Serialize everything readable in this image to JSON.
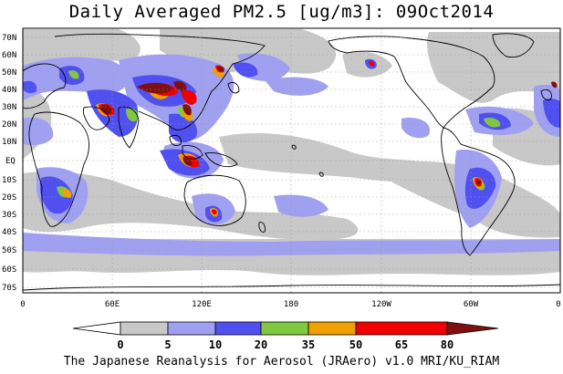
{
  "title": "Daily Averaged PM2.5 [ug/m3]: 09Oct2014",
  "footer": "The Japanese Reanalysis for Aerosol (JRAero) v1.0 MRI/KU_RIAM",
  "lat_labels": [
    "70N",
    "60N",
    "50N",
    "40N",
    "30N",
    "20N",
    "10N",
    "EQ",
    "10S",
    "20S",
    "30S",
    "40S",
    "50S",
    "60S",
    "70S"
  ],
  "lon_labels": [
    "0",
    "60E",
    "120E",
    "180",
    "120W",
    "60W",
    "0"
  ],
  "colorbar": {
    "labels": [
      "0",
      "5",
      "10",
      "20",
      "35",
      "50",
      "65",
      "80"
    ],
    "colors": [
      "#ffffff",
      "#c8c8c8",
      "#a0a0f0",
      "#5050f0",
      "#80c840",
      "#f0a000",
      "#f00000",
      "#801010"
    ]
  },
  "colors": {
    "light_gray": "#c8c8c8",
    "light_blue": "#a0a0f0",
    "blue": "#5050f0",
    "green": "#80c840",
    "orange": "#f0a000",
    "red": "#f00000",
    "dark_red": "#801010",
    "coast": "#000000"
  }
}
